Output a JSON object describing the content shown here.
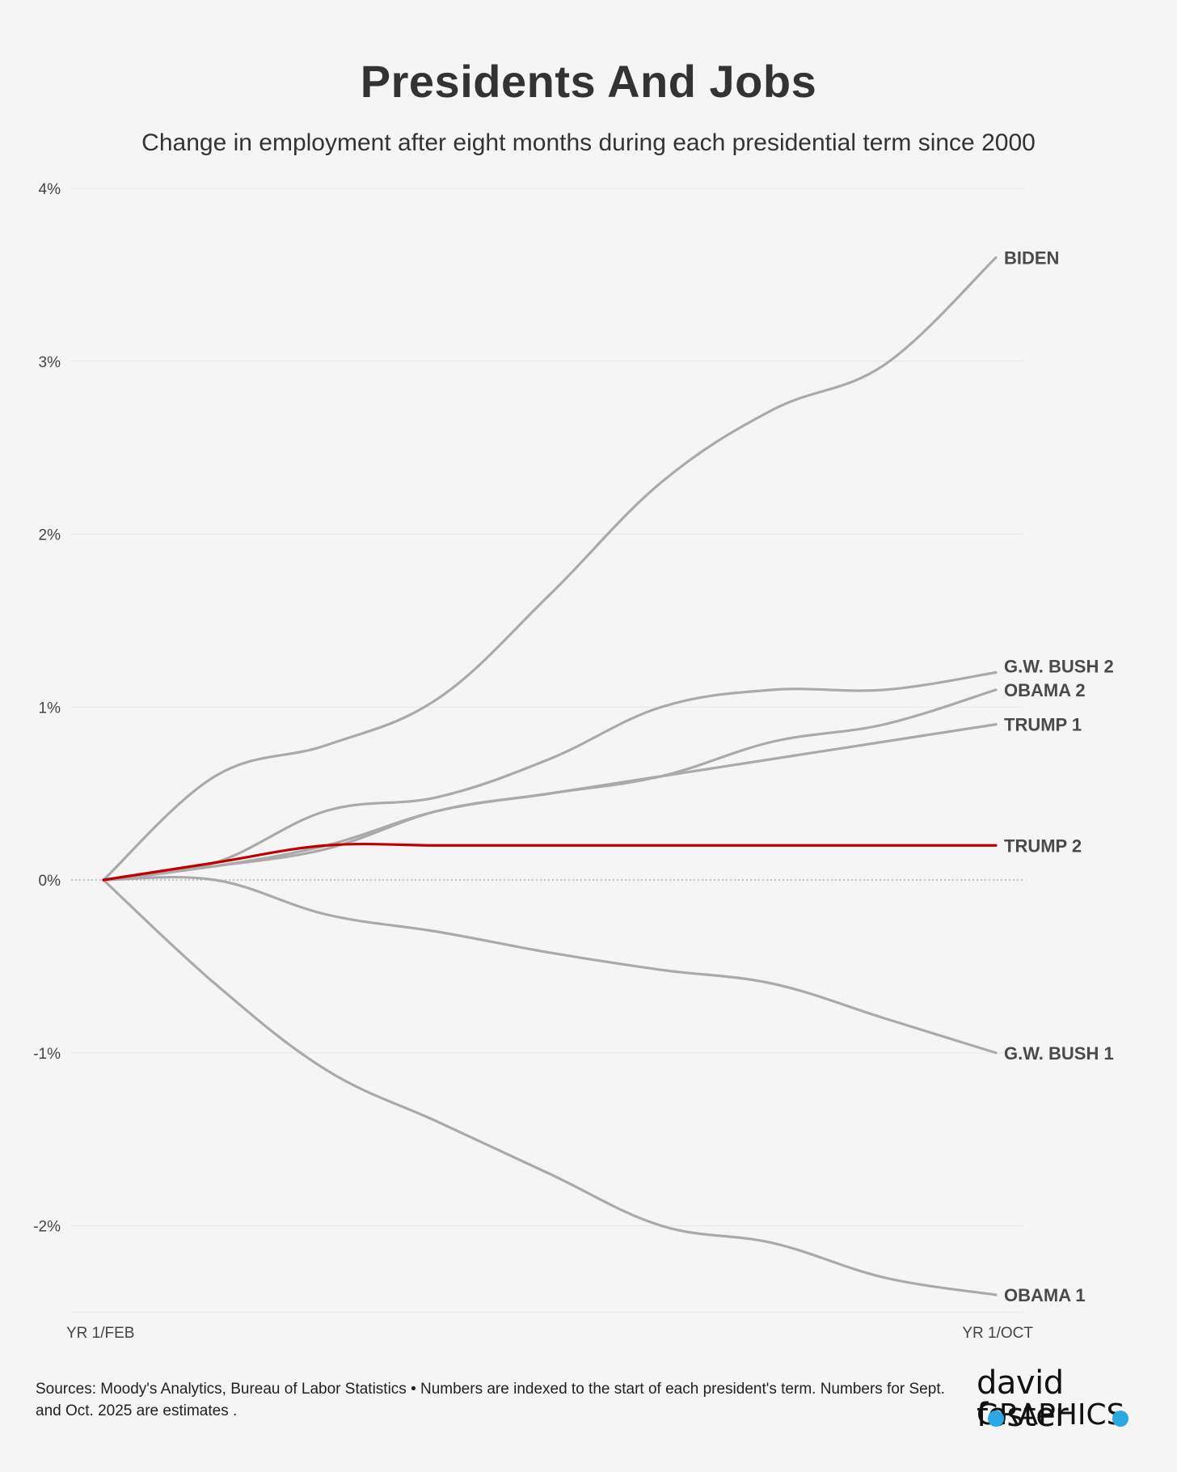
{
  "header": {
    "title": "Presidents And Jobs",
    "subtitle": "Change in employment after eight months during each presidential term since 2000"
  },
  "chart_data": {
    "type": "line",
    "title": "Presidents And Jobs",
    "subtitle": "Change in employment after eight months during each presidential term since 2000",
    "xlabel": "",
    "ylabel": "",
    "x": [
      0,
      1,
      2,
      3,
      4,
      5,
      6,
      7,
      8
    ],
    "x_tick_labels": [
      {
        "x": 0,
        "label": "YR 1/FEB"
      },
      {
        "x": 8,
        "label": "YR 1/OCT"
      }
    ],
    "ylim": [
      -2.5,
      4
    ],
    "y_ticks": [
      4,
      3,
      2,
      1,
      0,
      -1,
      -2
    ],
    "y_tick_labels": [
      "4%",
      "3%",
      "2%",
      "1%",
      "0%",
      "-1%",
      "-2%"
    ],
    "grid": true,
    "zero_line": "dotted",
    "series": [
      {
        "name": "BIDEN",
        "label": "BIDEN",
        "color": "#aaaaaa",
        "values": [
          0,
          0.6,
          0.78,
          1.05,
          1.65,
          2.3,
          2.72,
          2.98,
          3.6
        ]
      },
      {
        "name": "G.W. BUSH 2",
        "label": "G.W. BUSH 2",
        "color": "#aaaaaa",
        "values": [
          0,
          0.1,
          0.4,
          0.48,
          0.7,
          1.0,
          1.1,
          1.1,
          1.2
        ]
      },
      {
        "name": "OBAMA 2",
        "label": "OBAMA 2",
        "color": "#aaaaaa",
        "values": [
          0,
          0.08,
          0.2,
          0.4,
          0.5,
          0.6,
          0.8,
          0.9,
          1.1
        ]
      },
      {
        "name": "TRUMP 1",
        "label": "TRUMP 1",
        "color": "#aaaaaa",
        "values": [
          0,
          0.08,
          0.18,
          0.4,
          0.5,
          0.6,
          0.7,
          0.8,
          0.9
        ]
      },
      {
        "name": "G.W. BUSH 1",
        "label": "G.W. BUSH 1",
        "color": "#aaaaaa",
        "values": [
          0,
          0,
          -0.2,
          -0.3,
          -0.42,
          -0.52,
          -0.6,
          -0.8,
          -1.0
        ]
      },
      {
        "name": "OBAMA 1",
        "label": "OBAMA 1",
        "color": "#aaaaaa",
        "values": [
          0,
          -0.6,
          -1.1,
          -1.4,
          -1.7,
          -2.0,
          -2.1,
          -2.3,
          -2.4
        ]
      },
      {
        "name": "TRUMP 2",
        "label": "TRUMP 2",
        "color": "#c00000",
        "values": [
          0,
          0.1,
          0.2,
          0.2,
          0.2,
          0.2,
          0.2,
          0.2,
          0.2
        ]
      }
    ]
  },
  "footer": {
    "sources": "Sources: Moody's Analytics, Bureau of Labor Statistics • Numbers are indexed to the start of each president's term. Numbers for Sept. and Oct. 2025 are estimates ."
  },
  "logo": {
    "line1": "david foster",
    "line2": "GRAPHICS",
    "accent": "#2aa9e0"
  }
}
